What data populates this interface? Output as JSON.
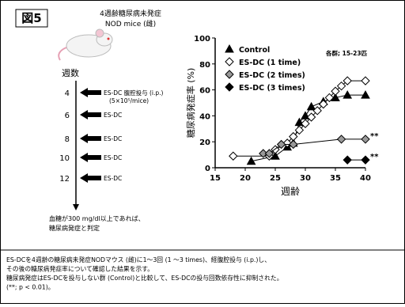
{
  "header": {
    "title": "図5"
  },
  "mouse": {
    "line1": "4週齢糖尿病未発症",
    "line2": "NOD mice (雌)"
  },
  "timeline": {
    "title": "週数",
    "rows": [
      {
        "week": "4",
        "label": "ES-DC 腹腔投与 (i.p.)",
        "sub": "(5×10⁵/mice)"
      },
      {
        "week": "6",
        "label": "ES-DC"
      },
      {
        "week": "8",
        "label": "ES-DC"
      },
      {
        "week": "10",
        "label": "ES-DC"
      },
      {
        "week": "12",
        "label": "ES-DC"
      }
    ],
    "note1": "血糖が300 mg/dl以上であれば、",
    "note2": "糖尿病発症と判定"
  },
  "caption": [
    "ES-DCを4週齢の糖尿病未発症NODマウス (雌)に1～3回 (1 ～3 times)、経腹腔投与 (i.p.)し、",
    "その後の糖尿病発症率について確認した結果を示す。",
    "糖尿病発症はES-DCを投与しない群 (Control)と比較して、ES-DCの投与回数依存性に抑制された。",
    "(**; p < 0.01)。"
  ],
  "chart_data": {
    "type": "line",
    "x_label": "週齢",
    "y_label": "糖尿病発症率 (%)",
    "annotation": "各群; 15-23匹",
    "significance": [
      "**",
      "**"
    ],
    "xlim": [
      15,
      40
    ],
    "ylim": [
      0,
      100
    ],
    "xticks": [
      15,
      20,
      25,
      30,
      35,
      40
    ],
    "yticks": [
      0,
      20,
      40,
      60,
      80,
      100
    ],
    "series": [
      {
        "name": "Control",
        "color": "#000000",
        "marker": "triangle",
        "x": [
          21,
          25,
          27,
          28,
          29,
          30,
          31,
          33,
          35,
          37,
          40
        ],
        "values": [
          5,
          9,
          16,
          19,
          35,
          40,
          47,
          51,
          54,
          56,
          56
        ]
      },
      {
        "name": "ES-DC (1 time)",
        "color": "#ffffff",
        "marker": "diamond",
        "x": [
          18,
          24,
          25,
          27,
          28,
          29,
          30,
          31,
          32,
          33,
          34,
          35,
          36,
          37,
          40
        ],
        "values": [
          9,
          9,
          14,
          19,
          24,
          29,
          34,
          39,
          44,
          49,
          54,
          59,
          63,
          67,
          67
        ]
      },
      {
        "name": "ES-DC (2 times)",
        "color": "#999999",
        "marker": "diamond",
        "x": [
          23,
          24,
          26,
          28,
          36,
          40
        ],
        "values": [
          11,
          11,
          18,
          18,
          22,
          22
        ]
      },
      {
        "name": "ES-DC (3 times)",
        "color": "#000000",
        "marker": "diamond",
        "x": [
          37,
          40
        ],
        "values": [
          6,
          6
        ]
      }
    ]
  }
}
